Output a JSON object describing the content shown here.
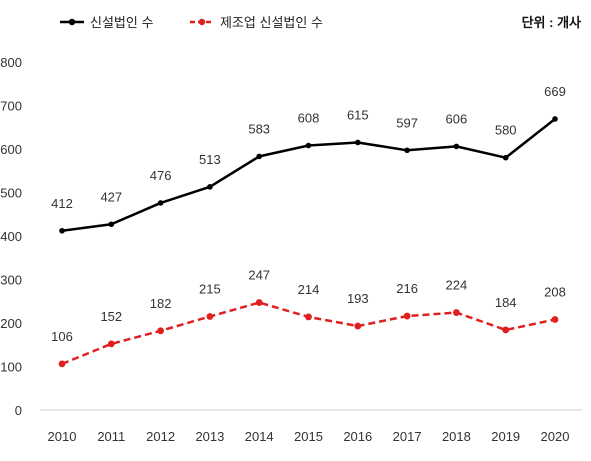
{
  "chart_data": {
    "type": "line",
    "categories": [
      "2010",
      "2011",
      "2012",
      "2013",
      "2014",
      "2015",
      "2016",
      "2017",
      "2018",
      "2019",
      "2020"
    ],
    "series": [
      {
        "name": "신설법인 수",
        "values": [
          412,
          427,
          476,
          513,
          583,
          608,
          615,
          597,
          606,
          580,
          669
        ],
        "color": "#000000",
        "style": "solid"
      },
      {
        "name": "제조업 신설법인 수",
        "values": [
          106,
          152,
          182,
          215,
          247,
          214,
          193,
          216,
          224,
          184,
          208
        ],
        "color": "#e02020",
        "style": "dashed"
      }
    ],
    "ylim": [
      0,
      800
    ],
    "yticks": [
      "0",
      "100",
      "200",
      "300",
      "400",
      "500",
      "600",
      "700",
      "800"
    ],
    "grid": false,
    "legend_position": "top-left",
    "unit_label": "단위 : 개사"
  }
}
